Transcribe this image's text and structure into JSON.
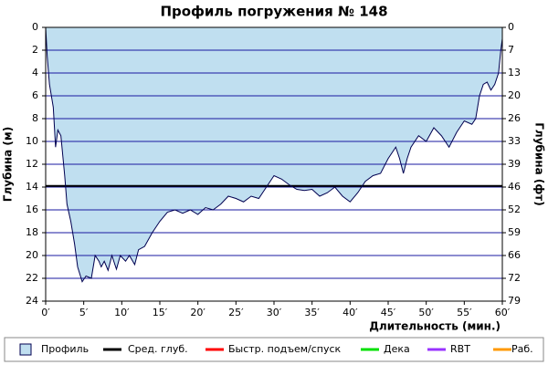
{
  "chart_data": {
    "type": "area",
    "title": "Профиль погружения № 148",
    "xlabel": "Длительность (мин.)",
    "ylabel": "Глубина (м)",
    "y2label": "Глубина (фт)",
    "x": [
      0,
      0.2,
      0.5,
      1,
      1.3,
      1.6,
      2,
      2.5,
      2.8,
      3.3,
      3.8,
      4.2,
      4.8,
      5.3,
      6,
      6.5,
      7,
      7.3,
      7.7,
      8.2,
      8.7,
      9.3,
      9.8,
      10.5,
      11,
      11.7,
      12.2,
      13,
      14,
      15,
      16,
      17,
      18,
      19,
      20,
      21,
      22,
      23,
      24,
      25,
      26,
      27,
      28,
      29,
      30,
      31,
      32,
      33,
      34,
      35,
      36,
      37,
      38,
      39,
      40,
      41,
      42,
      43,
      44,
      45,
      46,
      46.5,
      47,
      47.5,
      48,
      49,
      50,
      51,
      52,
      53,
      54,
      55,
      56,
      56.5,
      57,
      57.5,
      58,
      58.5,
      59,
      59.5,
      59.8,
      60
    ],
    "series": [
      {
        "name": "Профиль",
        "color": "#c0dff0",
        "line_color": "#000050",
        "values": [
          0,
          2.5,
          5,
          7,
          10.5,
          9,
          9.5,
          13,
          15.5,
          17,
          19,
          21,
          22.3,
          21.8,
          22,
          20,
          20.5,
          21,
          20.5,
          21.3,
          20,
          21.2,
          20,
          20.5,
          20,
          20.8,
          19.5,
          19.2,
          18,
          17,
          16.2,
          16,
          16.3,
          16,
          16.4,
          15.8,
          16,
          15.5,
          14.8,
          15,
          15.3,
          14.8,
          15,
          14,
          13,
          13.3,
          13.8,
          14.2,
          14.3,
          14.2,
          14.8,
          14.5,
          14,
          14.8,
          15.3,
          14.5,
          13.5,
          13,
          12.8,
          11.5,
          10.5,
          11.5,
          12.8,
          11.5,
          10.5,
          9.5,
          10,
          8.8,
          9.5,
          10.5,
          9.2,
          8.2,
          8.5,
          8,
          6,
          5,
          4.8,
          5.5,
          5,
          4,
          2,
          1
        ]
      }
    ],
    "avg_depth": {
      "name": "Сред. глуб.",
      "color": "#000000",
      "value": 13.9
    },
    "legend_items": [
      {
        "name": "Быстр. подъем/спуск",
        "color": "#ff0000"
      },
      {
        "name": "Дека",
        "color": "#00e000"
      },
      {
        "name": "RBT",
        "color": "#9933ff"
      },
      {
        "name": "Раб.",
        "color": "#ff9900"
      }
    ],
    "xlim": [
      0,
      60
    ],
    "xticks": [
      {
        "value": 0,
        "label": "0′"
      },
      {
        "value": 5,
        "label": "5′"
      },
      {
        "value": 10,
        "label": "10′"
      },
      {
        "value": 15,
        "label": "15′"
      },
      {
        "value": 20,
        "label": "20′"
      },
      {
        "value": 25,
        "label": "25′"
      },
      {
        "value": 30,
        "label": "30′"
      },
      {
        "value": 35,
        "label": "35′"
      },
      {
        "value": 40,
        "label": "40′"
      },
      {
        "value": 45,
        "label": "45′"
      },
      {
        "value": 50,
        "label": "50′"
      },
      {
        "value": 55,
        "label": "55′"
      },
      {
        "value": 60,
        "label": "60′"
      }
    ],
    "ylim": [
      0,
      24
    ],
    "yticks": [
      0,
      2,
      4,
      6,
      8,
      10,
      12,
      14,
      16,
      18,
      20,
      22,
      24
    ],
    "y2lim": [
      0,
      78.74
    ],
    "y2ticks": [
      0,
      {
        "value": 6.56,
        "label": "7"
      },
      {
        "value": 13.12,
        "label": "13"
      },
      {
        "value": 19.69,
        "label": "20"
      },
      {
        "value": 26.25,
        "label": "26"
      },
      {
        "value": 32.81,
        "label": "33"
      },
      {
        "value": 39.37,
        "label": "39"
      },
      {
        "value": 45.93,
        "label": "46"
      },
      {
        "value": 52.49,
        "label": "52"
      },
      {
        "value": 59.06,
        "label": "59"
      },
      {
        "value": 65.62,
        "label": "66"
      },
      {
        "value": 72.18,
        "label": "72"
      },
      {
        "value": 78.74,
        "label": "79"
      }
    ],
    "y_inverted": true,
    "grid": true,
    "grid_color": "#1a1aa0"
  }
}
